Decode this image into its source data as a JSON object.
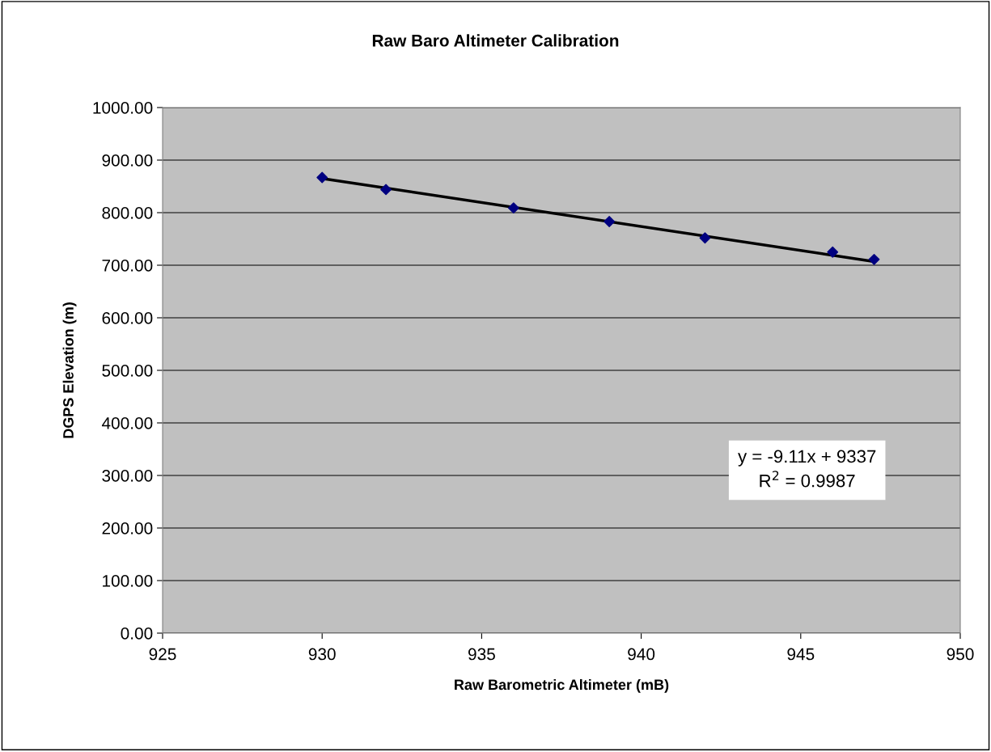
{
  "chart_data": {
    "type": "scatter",
    "title": "Raw Baro Altimeter Calibration",
    "xlabel": "Raw Barometric Altimeter (mB)",
    "ylabel": "DGPS Elevation (m)",
    "series": [
      {
        "color": "#000080",
        "marker": "diamond",
        "x": [
          930,
          932,
          936,
          939,
          942,
          946,
          947.3
        ],
        "values": [
          867,
          844,
          809,
          783,
          752,
          725,
          711
        ]
      },
      {
        "type": "line",
        "color": "#000000",
        "marker": "none",
        "line_style": "solid",
        "x": [
          930,
          947.3
        ],
        "values": [
          865,
          707
        ]
      }
    ],
    "annotations": [
      "y = -9.11x + 9337\nR$^{2}$ = 0.9987"
    ],
    "xlim": [
      925,
      950
    ],
    "xticks": [
      925,
      930,
      935,
      940,
      945,
      950
    ],
    "ylim": [
      0,
      1000
    ],
    "yticks": [
      {
        "value": 0,
        "label": "0.00"
      },
      {
        "value": 100,
        "label": "100.00"
      },
      {
        "value": 200,
        "label": "200.00"
      },
      {
        "value": 300,
        "label": "300.00"
      },
      {
        "value": 400,
        "label": "400.00"
      },
      {
        "value": 500,
        "label": "500.00"
      },
      {
        "value": 600,
        "label": "600.00"
      },
      {
        "value": 700,
        "label": "700.00"
      },
      {
        "value": 800,
        "label": "800.00"
      },
      {
        "value": 900,
        "label": "900.00"
      },
      {
        "value": 1000,
        "label": "1000.00"
      }
    ],
    "grid": "y",
    "legend": false
  }
}
